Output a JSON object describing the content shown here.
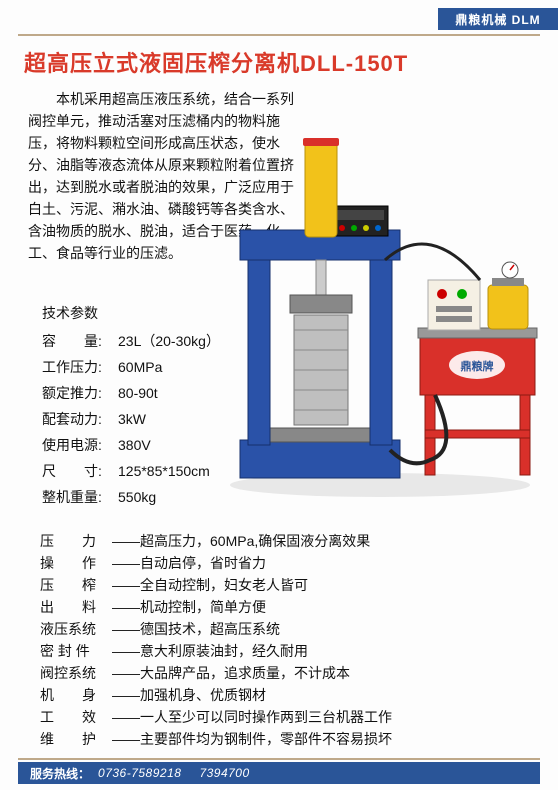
{
  "brand_bar": "鼎粮机械 DLM",
  "title": "超高压立式液固压榨分离机DLL-150T",
  "description": "本机采用超高压液压系统，结合一系列阀控单元，推动活塞对压滤桶内的物料施压，将物料颗粒空间形成高压状态，使水分、油脂等液态流体从原来颗粒附着位置挤出，达到脱水或者脱油的效果，广泛应用于白土、污泥、潲水油、磷酸钙等各类含水、含油物质的脱水、脱油，适合于医药、化工、食品等行业的压滤。",
  "specs_header": "技术参数",
  "specs": [
    {
      "label": "容　　量:",
      "cls": "",
      "value": "23L（20-30kg）"
    },
    {
      "label": "工作压力:",
      "cls": "",
      "value": "60MPa"
    },
    {
      "label": "额定推力:",
      "cls": "",
      "value": "80-90t"
    },
    {
      "label": "配套动力:",
      "cls": "",
      "value": "3kW"
    },
    {
      "label": "使用电源:",
      "cls": "",
      "value": "380V"
    },
    {
      "label": "尺　　寸:",
      "cls": "",
      "value": "125*85*150cm"
    },
    {
      "label": "整机重量:",
      "cls": "",
      "value": "550kg"
    }
  ],
  "features": [
    {
      "label": "压　　力",
      "value": "——超高压力，60MPa,确保固液分离效果"
    },
    {
      "label": "操　　作",
      "value": "——自动启停，省时省力"
    },
    {
      "label": "压　　榨",
      "value": "——全自动控制，妇女老人皆可"
    },
    {
      "label": "出　　料",
      "value": "——机动控制，简单方便"
    },
    {
      "label": "液压系统",
      "value": "——德国技术，超高压系统"
    },
    {
      "label": "密 封 件",
      "value": "——意大利原装油封，经久耐用"
    },
    {
      "label": "阀控系统",
      "value": "——大品牌产品，追求质量，不计成本"
    },
    {
      "label": "机　　身",
      "value": "——加强机身、优质钢材"
    },
    {
      "label": "工　　效",
      "value": "——一人至少可以同时操作两到三台机器工作"
    },
    {
      "label": "维　　护",
      "value": "——主要部件均为钢制件，零部件不容易损坏"
    }
  ],
  "footer_label": "服务热线：",
  "footer_phone1": "0736-7589218",
  "footer_phone2": "7394700",
  "colors": {
    "press_blue": "#2a52a8",
    "cylinder_yellow": "#f2c21a",
    "pump_red": "#d9302a",
    "panel_cream": "#f5f0e4",
    "metal": "#b8b8b8",
    "brand_bg": "#2a5598"
  }
}
